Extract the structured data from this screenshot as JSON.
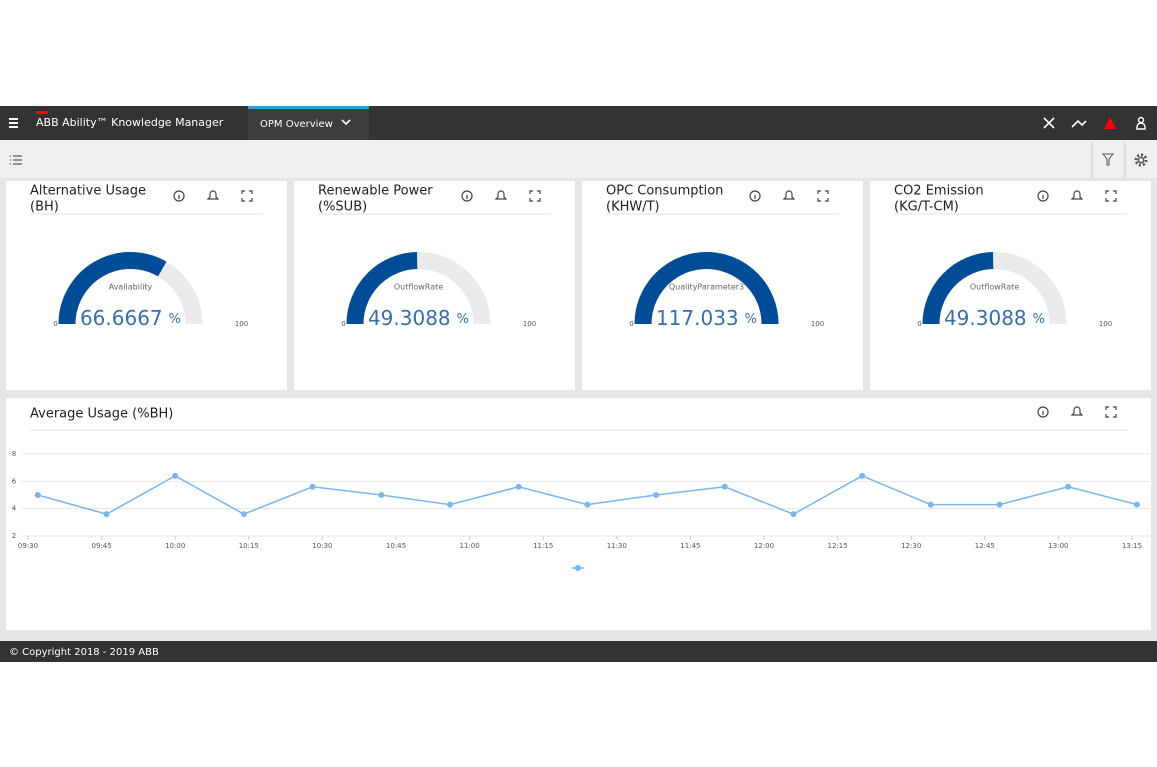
{
  "header": {
    "app_title": "ABB Ability™ Knowledge Manager",
    "tab": "OPM Overview"
  },
  "gauges": [
    {
      "title": [
        "Alternative Usage",
        "(BH)"
      ],
      "label": "Availability",
      "value": 66.6667,
      "unit": "%",
      "min": 0,
      "max": 100,
      "color": "#004c97"
    },
    {
      "title": [
        "Renewable Power",
        "(%SUB)"
      ],
      "label": "OutflowRate",
      "value": 49.3088,
      "unit": "%",
      "min": 0,
      "max": 100,
      "color": "#004c97"
    },
    {
      "title": [
        "OPC Consumption",
        "(KHW/T)"
      ],
      "label": "QualityParameter3",
      "value": 117.033,
      "unit": "%",
      "min": 0,
      "max": 100,
      "color": "#004c97"
    },
    {
      "title": [
        "CO2 Emission",
        "(KG/T-CM)"
      ],
      "label": "OutflowRate",
      "value": 49.3088,
      "unit": "%",
      "min": 0,
      "max": 100,
      "color": "#004c97"
    }
  ],
  "chart_data": {
    "type": "line",
    "title": "Average Usage (%BH)",
    "x": [
      "09:32",
      "09:46",
      "10:00",
      "10:14",
      "10:28",
      "10:42",
      "10:56",
      "11:10",
      "11:24",
      "11:38",
      "11:52",
      "12:06",
      "12:20",
      "12:34",
      "12:48",
      "13:02",
      "13:16"
    ],
    "series": [
      {
        "color": "#7cb5ec",
        "values": [
          5.0,
          3.6,
          6.4,
          3.6,
          5.6,
          5.0,
          4.3,
          5.6,
          4.3,
          5.0,
          5.6,
          3.6,
          6.4,
          4.3,
          4.3,
          5.6,
          4.3
        ]
      }
    ],
    "xlim": [
      "09:30",
      "13:15"
    ],
    "xticks": [
      "09:30",
      "09:45",
      "10:00",
      "10:15",
      "10:30",
      "10:45",
      "11:00",
      "11:15",
      "11:30",
      "11:45",
      "12:00",
      "12:15",
      "12:30",
      "12:45",
      "13:00",
      "13:15"
    ],
    "ylim": [
      2,
      8
    ],
    "yticks": [
      2,
      4,
      6,
      8
    ],
    "grid": true
  },
  "footer": {
    "text": "© Copyright 2018 - 2019 ABB"
  }
}
